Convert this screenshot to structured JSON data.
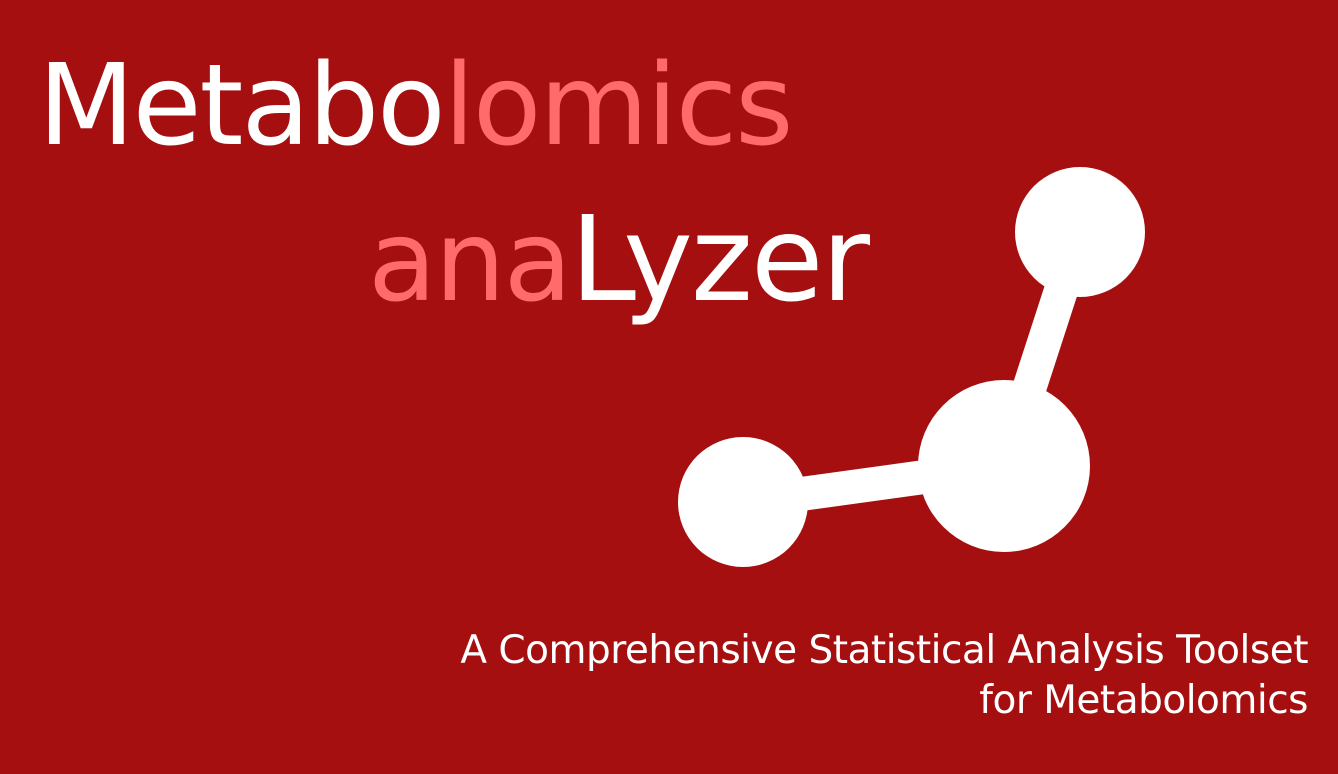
{
  "title": {
    "line1": {
      "part1": "Metabo",
      "part2": "lomics"
    },
    "line2": {
      "part1": "ana",
      "part2": "Lyzer"
    }
  },
  "tagline": {
    "line1": "A Comprehensive Statistical Analysis Toolset",
    "line2": "for Metabolomics"
  },
  "colors": {
    "background": "#a50f10",
    "primary_text": "#ffffff",
    "accent_text": "#ff6b6b"
  },
  "icons": {
    "logo_graphic": "molecule-icon"
  }
}
